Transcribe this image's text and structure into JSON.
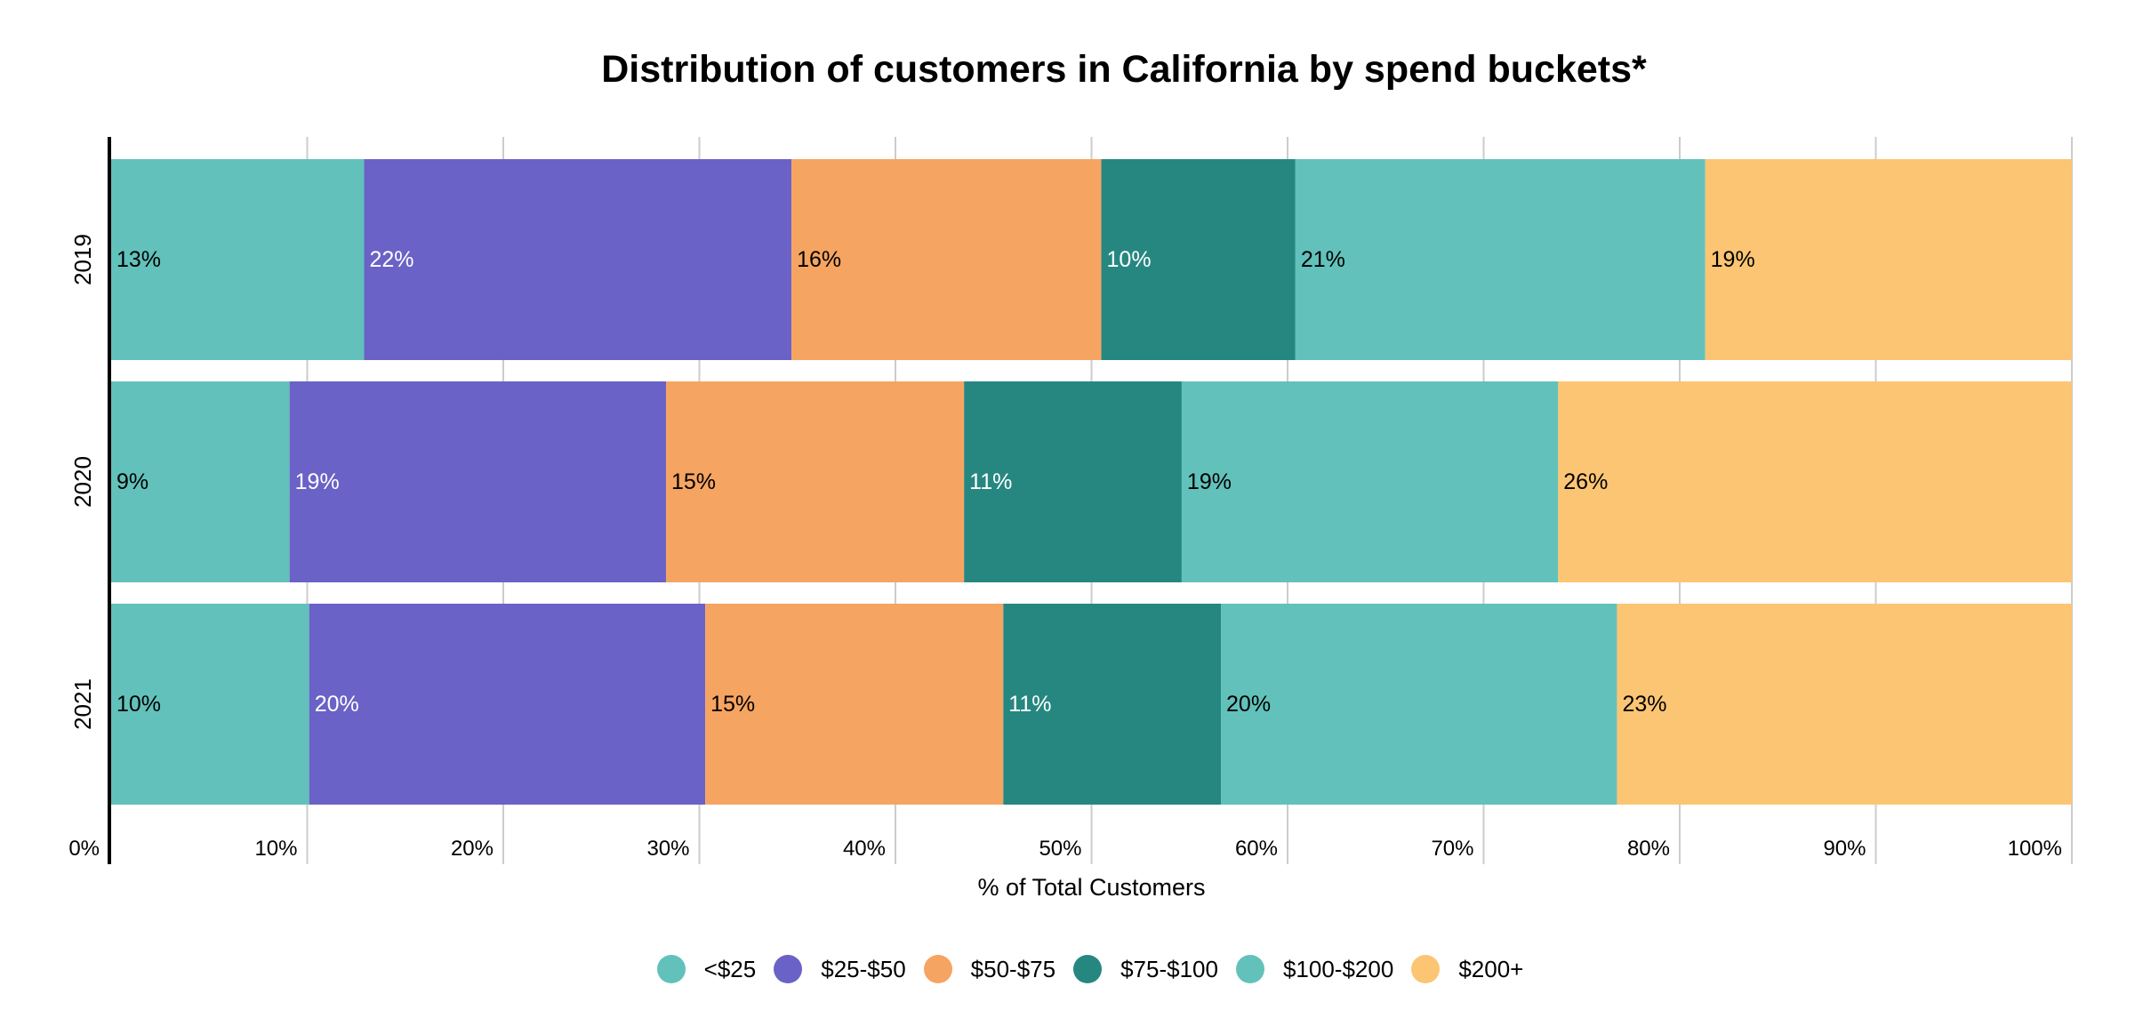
{
  "chart_data": {
    "type": "bar",
    "orientation": "horizontal",
    "stacked": true,
    "title": "Distribution of customers in California by spend buckets*",
    "xlabel": "% of Total Customers",
    "ylabel": "",
    "xlim": [
      0,
      100
    ],
    "x_ticks": [
      "0%",
      "10%",
      "20%",
      "30%",
      "40%",
      "50%",
      "60%",
      "70%",
      "80%",
      "90%",
      "100%"
    ],
    "grid": true,
    "legend_position": "bottom",
    "categories": [
      "2019",
      "2020",
      "2021"
    ],
    "series": [
      {
        "name": "<$25",
        "color": "#62c1bb",
        "label_color": "#000000",
        "values": [
          12.9,
          9.1,
          10.1
        ],
        "labels": [
          "13%",
          "9%",
          "10%"
        ]
      },
      {
        "name": "$25-$50",
        "color": "#6a62c6",
        "label_color": "#ffffff",
        "values": [
          21.8,
          19.2,
          20.2
        ],
        "labels": [
          "22%",
          "19%",
          "20%"
        ]
      },
      {
        "name": "$50-$75",
        "color": "#f6a461",
        "label_color": "#000000",
        "values": [
          15.8,
          15.2,
          15.2
        ],
        "labels": [
          "16%",
          "15%",
          "15%"
        ]
      },
      {
        "name": "$75-$100",
        "color": "#268781",
        "label_color": "#ffffff",
        "values": [
          9.9,
          11.1,
          11.1
        ],
        "labels": [
          "10%",
          "11%",
          "11%"
        ]
      },
      {
        "name": "$100-$200",
        "color": "#62c1bb",
        "label_color": "#000000",
        "values": [
          20.9,
          19.2,
          20.2
        ],
        "labels": [
          "21%",
          "19%",
          "20%"
        ]
      },
      {
        "name": "$200+",
        "color": "#fcc573",
        "label_color": "#000000",
        "values": [
          18.7,
          26.2,
          23.2
        ],
        "labels": [
          "19%",
          "26%",
          "23%"
        ]
      }
    ]
  }
}
